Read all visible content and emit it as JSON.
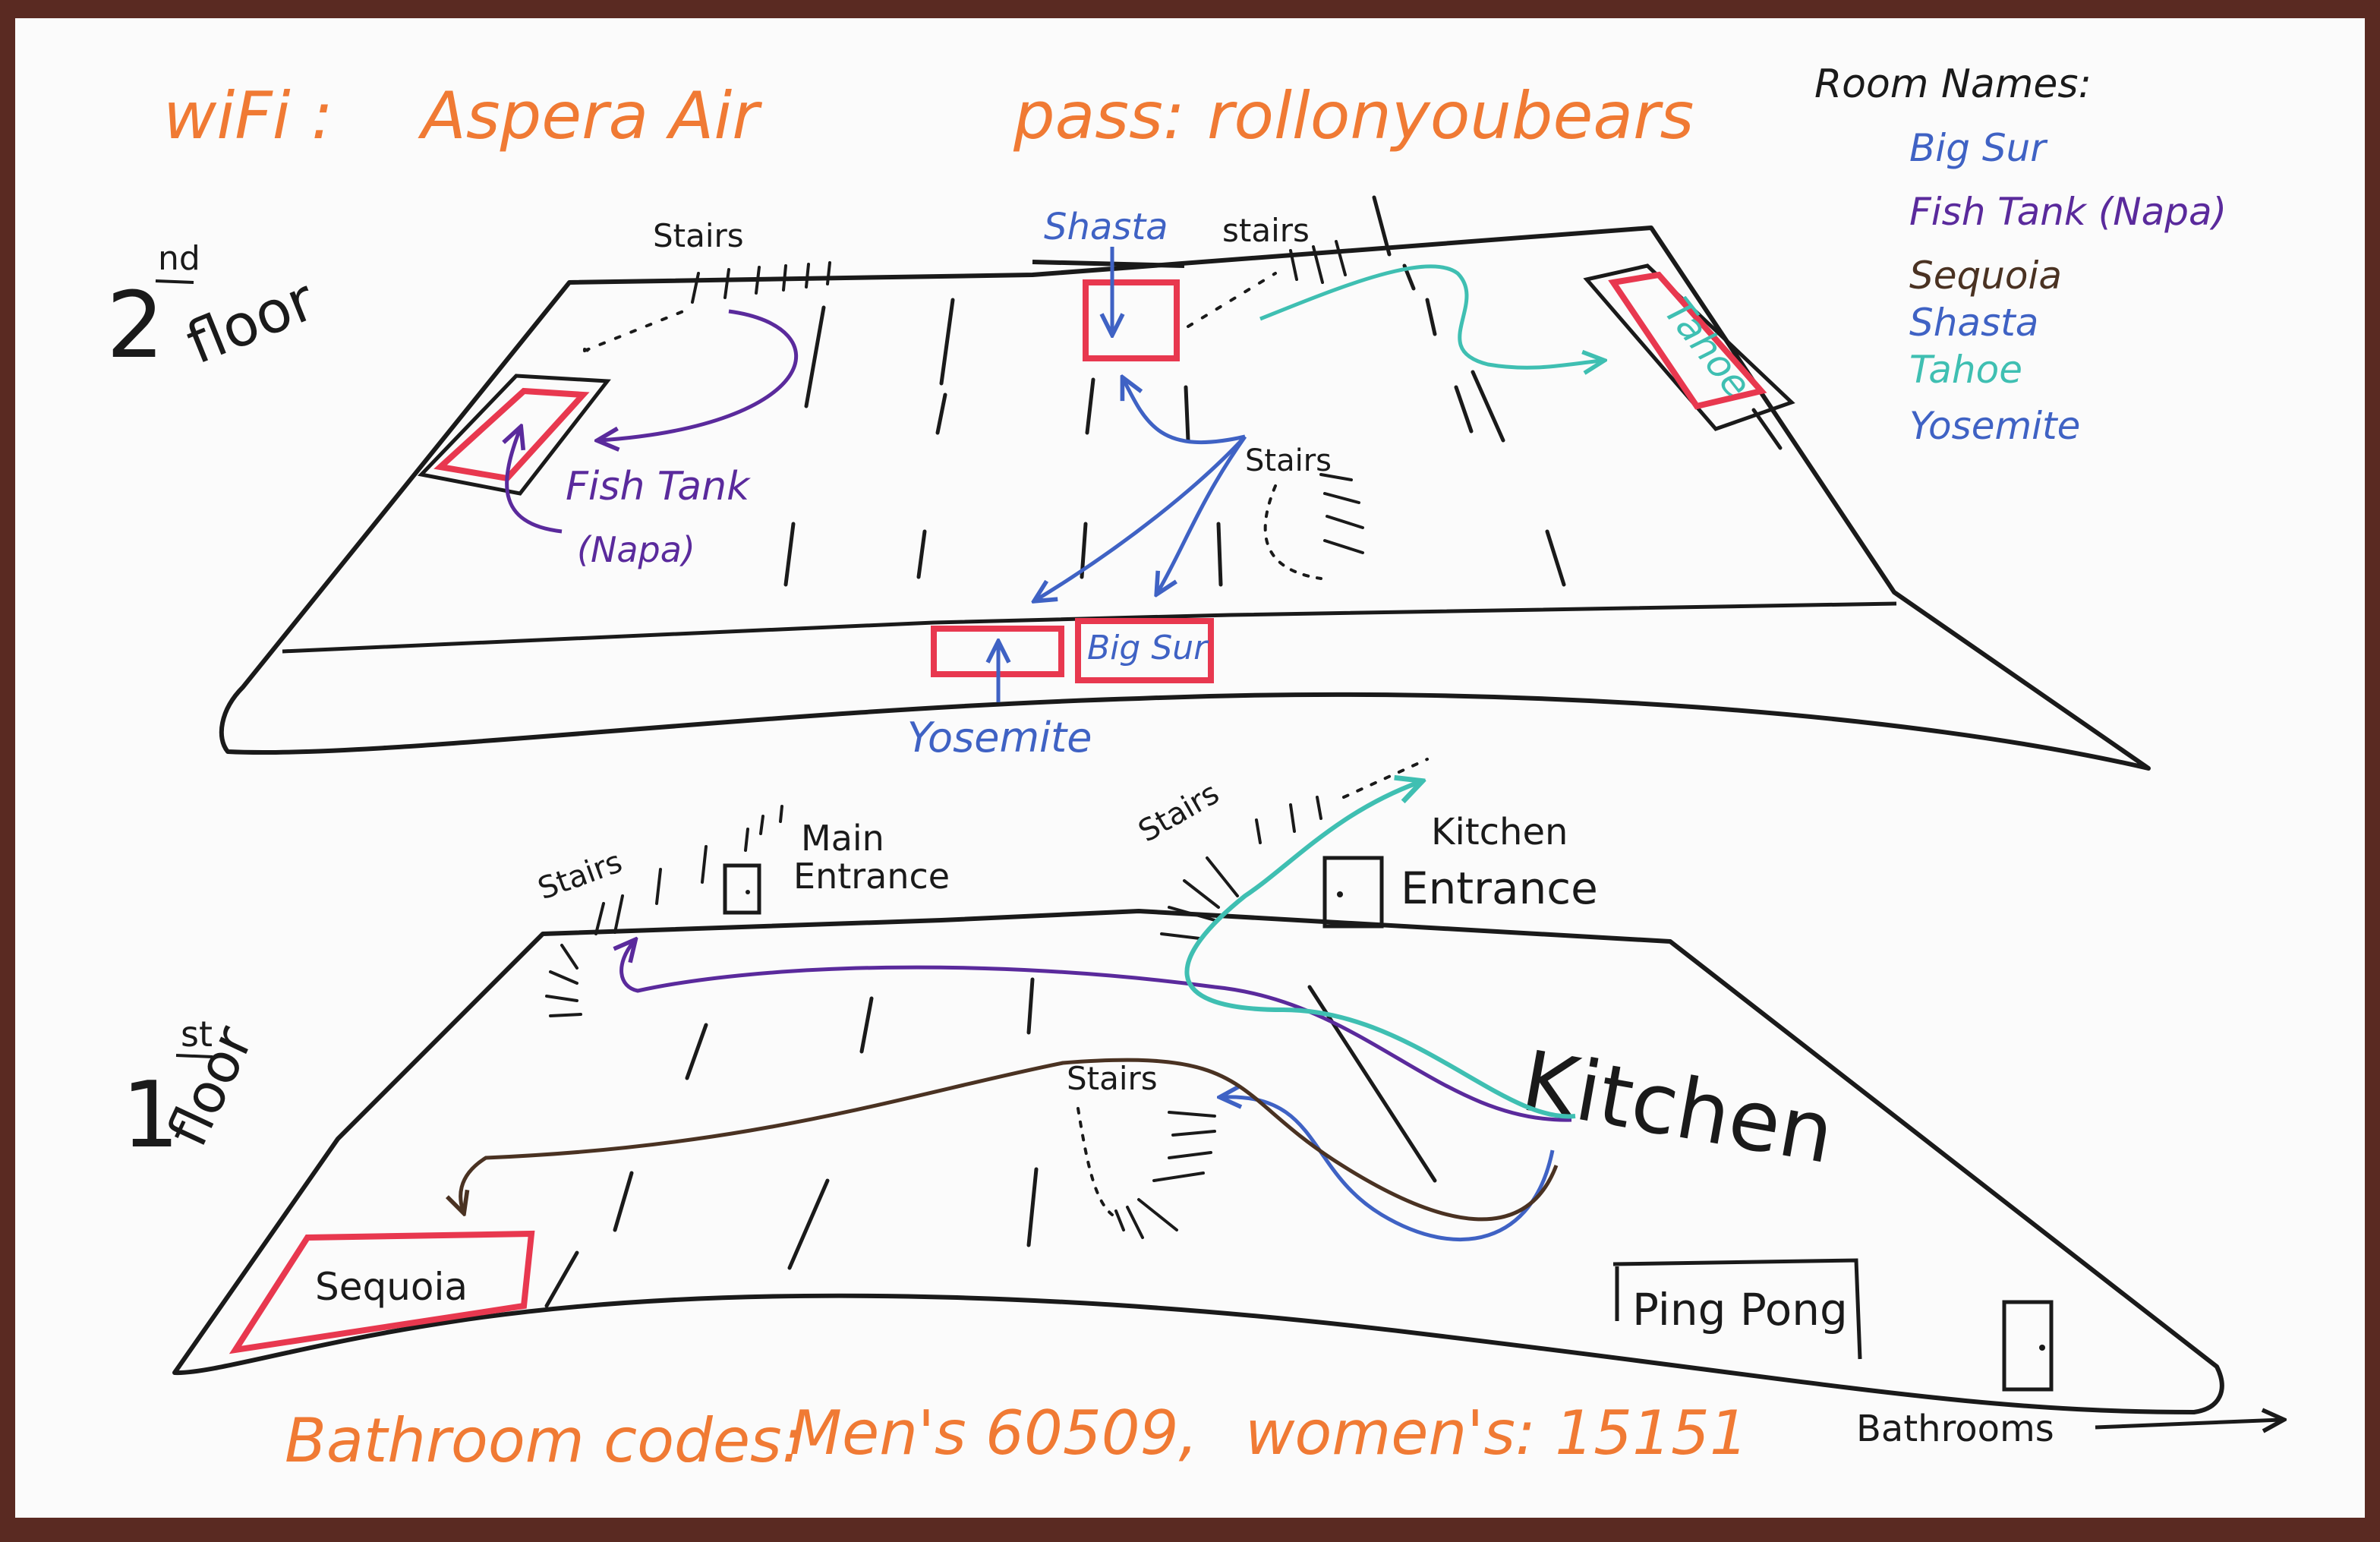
{
  "header": {
    "wifi_label": "wiFi :",
    "wifi_name": "Aspera Air",
    "pass_label": "pass:",
    "password": "rollonyoubears"
  },
  "legend": {
    "title": "Room Names:",
    "items": [
      {
        "name": "Big Sur",
        "color": "#3f62c4"
      },
      {
        "name": "Fish Tank (Napa)",
        "color": "#5a2a9c"
      },
      {
        "name": "Sequoia",
        "color": "#4a3222"
      },
      {
        "name": "Shasta",
        "color": "#3f62c4"
      },
      {
        "name": "Tahoe",
        "color": "#3fbfb2"
      },
      {
        "name": "Yosemite",
        "color": "#3f62c4"
      }
    ]
  },
  "second_floor": {
    "label_num": "2",
    "label_suffix": "nd",
    "label_word": "floor",
    "stairs_labels": [
      "Stairs",
      "stairs",
      "Stairs"
    ],
    "rooms": {
      "fish_tank": "Fish Tank",
      "napa": "(Napa)",
      "shasta": "Shasta",
      "tahoe": "Tahoe",
      "big_sur": "Big Sur",
      "yosemite": "Yosemite"
    }
  },
  "first_floor": {
    "label_num": "1",
    "label_suffix": "st",
    "label_word": "floor",
    "stairs_labels": [
      "Stairs",
      "Stairs",
      "Stairs"
    ],
    "main_entrance": [
      "Main",
      "Entrance"
    ],
    "kitchen_entrance": [
      "Kitchen",
      "Entrance"
    ],
    "kitchen": "Kitchen",
    "sequoia": "Sequoia",
    "ping_pong": "Ping Pong",
    "bathrooms": "Bathrooms"
  },
  "footer": {
    "codes_label": "Bathroom codes:",
    "mens": "Men's 60509,",
    "womens": "women's: 15151"
  },
  "colors": {
    "orange": "#f07a34",
    "red": "#e8384f",
    "blue": "#3f62c4",
    "purple": "#5a2a9c",
    "teal": "#3fbfb2",
    "brown": "#4a3222",
    "black": "#1a1a1a"
  }
}
